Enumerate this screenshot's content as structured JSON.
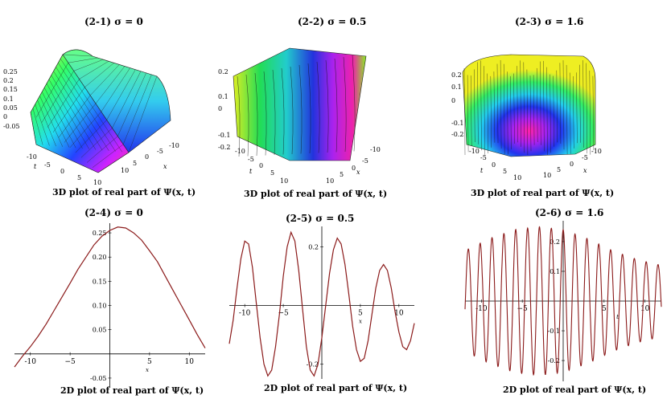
{
  "colors": {
    "curve": "#8b1a1a",
    "axis": "#000000",
    "mesh": "#1a1a1a"
  },
  "panels_3d": [
    {
      "title": "(2-1)  σ = 0",
      "caption": "3D  plot of  real part of Ψ(x, t)",
      "z_ticks": [
        "0.25",
        "0.2",
        "0.15",
        "0.1",
        "0.05",
        "0",
        "-0.05"
      ],
      "t_ticks": [
        "-10",
        "-5",
        "0",
        "5",
        "10"
      ],
      "x_ticks": [
        "10",
        "5",
        "0",
        "-5",
        "-10"
      ],
      "t_label": "t",
      "x_label": "x"
    },
    {
      "title": "(2-2)  σ = 0.5",
      "caption": "3D  plot of  real part of Ψ(x, t)",
      "z_ticks": [
        "0.2",
        "0.1",
        "0",
        "-0.1",
        "-0.2"
      ],
      "t_ticks": [
        "-10",
        "-5",
        "0",
        "5",
        "10"
      ],
      "x_ticks": [
        "10",
        "5",
        "0",
        "-5",
        "-10"
      ],
      "t_label": "t",
      "x_label": "x"
    },
    {
      "title": "(2-3)  σ = 1.6",
      "caption": "3D  plot of  real part of Ψ(x, t)",
      "z_ticks": [
        "0.2",
        "0.1",
        "0",
        "-0.1",
        "-0.2"
      ],
      "t_ticks": [
        "-10",
        "-5",
        "0",
        "5",
        "10"
      ],
      "x_ticks": [
        "10",
        "5",
        "0",
        "-5",
        "-10"
      ],
      "t_label": "t",
      "x_label": "x"
    }
  ],
  "chart_data": [
    {
      "type": "surface",
      "title": "(2-1)  σ = 0",
      "xlabel": "x",
      "ylabel": "t",
      "zlim": [
        -0.05,
        0.25
      ],
      "xlim": [
        -10,
        10
      ],
      "ylim": [
        -10,
        10
      ]
    },
    {
      "type": "surface",
      "title": "(2-2)  σ = 0.5",
      "xlabel": "x",
      "ylabel": "t",
      "zlim": [
        -0.2,
        0.2
      ],
      "xlim": [
        -10,
        10
      ],
      "ylim": [
        -10,
        10
      ]
    },
    {
      "type": "surface",
      "title": "(2-3)  σ = 1.6",
      "xlabel": "x",
      "ylabel": "t",
      "zlim": [
        -0.2,
        0.2
      ],
      "xlim": [
        -10,
        10
      ],
      "ylim": [
        -10,
        10
      ]
    },
    {
      "type": "line",
      "title": "(2-4)  σ = 0",
      "caption": "2D  plot of  real part of Ψ(x, t)",
      "xlabel": "x",
      "xlim": [
        -12,
        12
      ],
      "ylim": [
        -0.07,
        0.27
      ],
      "xticks": [
        -10,
        -5,
        0,
        5,
        10
      ],
      "xtick_labels": [
        "-10",
        "−5",
        "0",
        "5",
        "10"
      ],
      "yticks": [
        0.25,
        0.2,
        0.15,
        0.1,
        0.05,
        -0.05
      ],
      "ytick_labels": [
        "0.25",
        "0.20",
        "0.15",
        "0.10",
        "0.05",
        "-0.05"
      ],
      "series": [
        {
          "x": [
            -12,
            -11,
            -10,
            -9,
            -8,
            -7,
            -6,
            -5,
            -4,
            -3,
            -2,
            -1,
            0,
            1,
            2,
            3,
            4,
            5,
            6,
            7,
            8,
            9,
            10,
            11,
            12
          ],
          "values": [
            -0.027,
            -0.005,
            0.015,
            0.037,
            0.062,
            0.09,
            0.118,
            0.146,
            0.175,
            0.2,
            0.225,
            0.243,
            0.255,
            0.262,
            0.26,
            0.25,
            0.235,
            0.213,
            0.19,
            0.16,
            0.13,
            0.1,
            0.07,
            0.04,
            0.012
          ]
        }
      ]
    },
    {
      "type": "line",
      "title": "(2-5)  σ = 0.5",
      "caption": "2D  plot of  real part of Ψ(x, t)",
      "xlabel": "x",
      "xlim": [
        -12,
        12
      ],
      "ylim": [
        -0.25,
        0.27
      ],
      "xticks": [
        -10,
        -5,
        0,
        5,
        10
      ],
      "xtick_labels": [
        "-10",
        "−5",
        "0",
        "5",
        "10"
      ],
      "yticks": [
        0.2,
        -0.2
      ],
      "ytick_labels": [
        "0.2",
        "-0.2"
      ],
      "series": [
        {
          "x": [
            -12,
            -11.5,
            -11,
            -10.5,
            -10,
            -9.5,
            -9,
            -8.5,
            -8,
            -7.5,
            -7,
            -6.5,
            -6,
            -5.5,
            -5,
            -4.5,
            -4,
            -3.5,
            -3,
            -2.5,
            -2,
            -1.5,
            -1,
            -0.5,
            0,
            0.5,
            1,
            1.5,
            2,
            2.5,
            3,
            3.5,
            4,
            4.5,
            5,
            5.5,
            6,
            6.5,
            7,
            7.5,
            8,
            8.5,
            9,
            9.5,
            10,
            10.5,
            11,
            11.5,
            12
          ],
          "values": [
            -0.13,
            -0.05,
            0.06,
            0.16,
            0.22,
            0.21,
            0.13,
            0.01,
            -0.11,
            -0.2,
            -0.24,
            -0.22,
            -0.14,
            -0.03,
            0.1,
            0.2,
            0.25,
            0.22,
            0.12,
            -0.01,
            -0.14,
            -0.22,
            -0.24,
            -0.2,
            -0.11,
            0.0,
            0.11,
            0.19,
            0.23,
            0.21,
            0.14,
            0.04,
            -0.07,
            -0.15,
            -0.19,
            -0.18,
            -0.12,
            -0.03,
            0.06,
            0.12,
            0.14,
            0.12,
            0.06,
            -0.02,
            -0.09,
            -0.14,
            -0.15,
            -0.12,
            -0.06
          ]
        }
      ]
    },
    {
      "type": "line",
      "title": "(2-6)  σ = 1.6",
      "caption": "2D  plot of  real part of Ψ(x, t)",
      "xlabel": "t",
      "xlim": [
        -12,
        12
      ],
      "ylim": [
        -0.27,
        0.27
      ],
      "xticks": [
        -10,
        -5,
        0,
        5,
        10
      ],
      "xtick_labels": [
        "-10",
        "−5",
        "0",
        "5",
        "10"
      ],
      "yticks": [
        0.2,
        0.1,
        -0.1,
        -0.2
      ],
      "ytick_labels": [
        "0.2",
        "0.1",
        "-0.1",
        "-0.2"
      ],
      "envelope": {
        "x": [
          -12,
          -9,
          -6,
          -3,
          0,
          3,
          6,
          9,
          12
        ],
        "amplitude": [
          0.17,
          0.21,
          0.24,
          0.25,
          0.24,
          0.21,
          0.17,
          0.14,
          0.12
        ]
      },
      "period": 1.45
    }
  ],
  "panels_2d": [
    {
      "title": "(2-4)  σ = 0",
      "caption": "2D  plot of  real part of Ψ(x, t)"
    },
    {
      "title": "(2-5)  σ = 0.5",
      "caption": "2D  plot of  real part of Ψ(x, t)"
    },
    {
      "title": "(2-6)  σ = 1.6",
      "caption": "2D  plot of  real part of Ψ(x, t)"
    }
  ]
}
